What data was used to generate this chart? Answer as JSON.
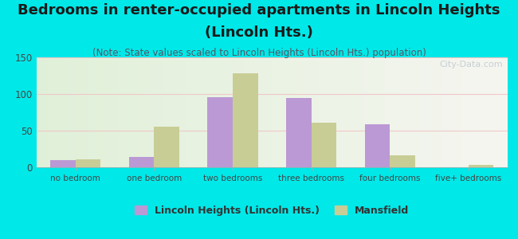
{
  "title_line1": "Bedrooms in renter-occupied apartments in Lincoln Heights",
  "title_line2": "(Lincoln Hts.)",
  "subtitle": "(Note: State values scaled to Lincoln Heights (Lincoln Hts.) population)",
  "categories": [
    "no bedroom",
    "one bedroom",
    "two bedrooms",
    "three bedrooms",
    "four bedrooms",
    "five+ bedrooms"
  ],
  "lincoln_values": [
    10,
    14,
    96,
    95,
    59,
    0
  ],
  "mansfield_values": [
    11,
    55,
    128,
    61,
    16,
    3
  ],
  "lincoln_color": "#bb99d4",
  "mansfield_color": "#c8cd96",
  "background_color": "#00e8e8",
  "ylim": [
    0,
    150
  ],
  "yticks": [
    0,
    50,
    100,
    150
  ],
  "title_fontsize": 13,
  "subtitle_fontsize": 8.5,
  "legend_label_lincoln": "Lincoln Heights (Lincoln Hts.)",
  "legend_label_mansfield": "Mansfield",
  "watermark": "City-Data.com"
}
